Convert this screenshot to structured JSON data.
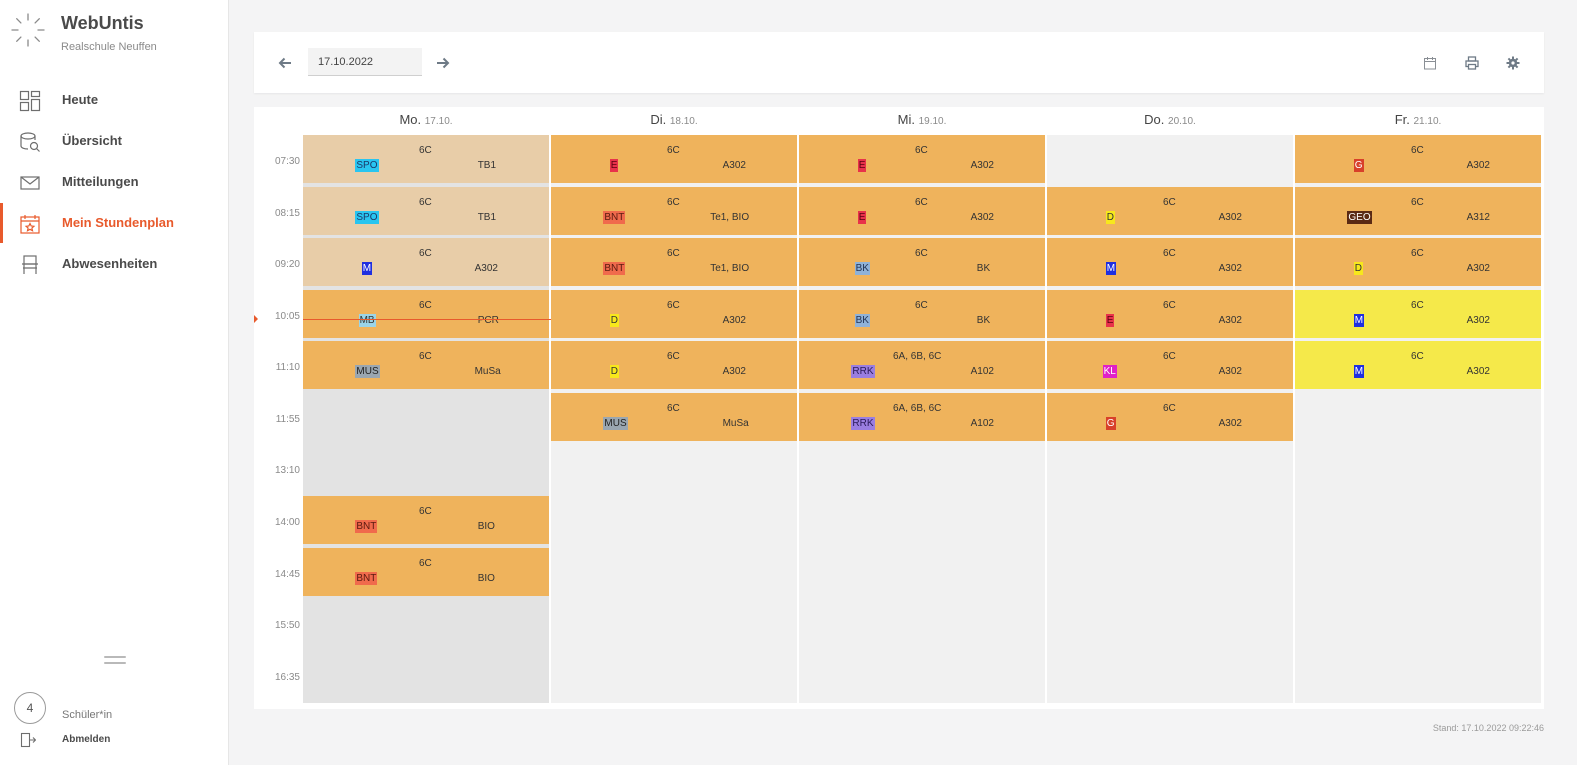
{
  "app": {
    "title": "WebUntis",
    "school": "Realschule Neuffen"
  },
  "nav": [
    {
      "label": "Heute",
      "icon": "dashboard-icon"
    },
    {
      "label": "Übersicht",
      "icon": "overview-icon"
    },
    {
      "label": "Mitteilungen",
      "icon": "mail-icon"
    },
    {
      "label": "Mein Stundenplan",
      "icon": "calendar-icon",
      "active": true
    },
    {
      "label": "Abwesenheiten",
      "icon": "chair-icon"
    }
  ],
  "user": {
    "avatar_text": "4",
    "role": "Schüler*in",
    "logout": "Abmelden"
  },
  "toolbar": {
    "date": "17.10.2022"
  },
  "colors": {
    "accent": "#e85a2c",
    "lesson": "#efb35c",
    "lesson_past": "#e8cda8",
    "highlight": "#f5e94a"
  },
  "days": [
    {
      "name": "Mo.",
      "date": "17.10."
    },
    {
      "name": "Di.",
      "date": "18.10."
    },
    {
      "name": "Mi.",
      "date": "19.10."
    },
    {
      "name": "Do.",
      "date": "20.10."
    },
    {
      "name": "Fr.",
      "date": "21.10."
    }
  ],
  "times": [
    "07:30",
    "08:15",
    "09:20",
    "10:05",
    "11:10",
    "11:55",
    "13:10",
    "14:00",
    "14:45",
    "15:50",
    "16:35"
  ],
  "lessons": [
    {
      "day": 0,
      "slot": 0,
      "class": "6C",
      "subject": "SPO",
      "subject_bg": "#29c5f0",
      "subject_fg": "#1b3a6b",
      "room": "TB1",
      "state": "past"
    },
    {
      "day": 0,
      "slot": 1,
      "class": "6C",
      "subject": "SPO",
      "subject_bg": "#29c5f0",
      "subject_fg": "#1b3a6b",
      "room": "TB1",
      "state": "past"
    },
    {
      "day": 0,
      "slot": 2,
      "class": "6C",
      "subject": "M",
      "subject_bg": "#1f2fe0",
      "subject_fg": "#ffffff",
      "room": "A302",
      "state": "past"
    },
    {
      "day": 0,
      "slot": 3,
      "class": "6C",
      "subject": "MB",
      "subject_bg": "#9ad4e8",
      "subject_fg": "#333333",
      "room": "PCR",
      "state": "normal"
    },
    {
      "day": 0,
      "slot": 4,
      "class": "6C",
      "subject": "MUS",
      "subject_bg": "#9aa6b0",
      "subject_fg": "#222222",
      "room": "MuSa",
      "state": "normal"
    },
    {
      "day": 0,
      "slot": 7,
      "class": "6C",
      "subject": "BNT",
      "subject_bg": "#f06a4c",
      "subject_fg": "#5a1a10",
      "room": "BIO",
      "state": "normal"
    },
    {
      "day": 0,
      "slot": 8,
      "class": "6C",
      "subject": "BNT",
      "subject_bg": "#f06a4c",
      "subject_fg": "#5a1a10",
      "room": "BIO",
      "state": "normal"
    },
    {
      "day": 1,
      "slot": 0,
      "class": "6C",
      "subject": "E",
      "subject_bg": "#e8324a",
      "subject_fg": "#5a0010",
      "room": "A302",
      "state": "normal"
    },
    {
      "day": 1,
      "slot": 1,
      "class": "6C",
      "subject": "BNT",
      "subject_bg": "#f06a4c",
      "subject_fg": "#5a1a10",
      "room": "Te1, BIO",
      "state": "normal"
    },
    {
      "day": 1,
      "slot": 2,
      "class": "6C",
      "subject": "BNT",
      "subject_bg": "#f06a4c",
      "subject_fg": "#5a1a10",
      "room": "Te1, BIO",
      "state": "normal"
    },
    {
      "day": 1,
      "slot": 3,
      "class": "6C",
      "subject": "D",
      "subject_bg": "#f7e81c",
      "subject_fg": "#333333",
      "room": "A302",
      "state": "normal"
    },
    {
      "day": 1,
      "slot": 4,
      "class": "6C",
      "subject": "D",
      "subject_bg": "#f7e81c",
      "subject_fg": "#333333",
      "room": "A302",
      "state": "normal"
    },
    {
      "day": 1,
      "slot": 5,
      "class": "6C",
      "subject": "MUS",
      "subject_bg": "#9aa6b0",
      "subject_fg": "#222222",
      "room": "MuSa",
      "state": "normal"
    },
    {
      "day": 2,
      "slot": 0,
      "class": "6C",
      "subject": "E",
      "subject_bg": "#e8324a",
      "subject_fg": "#5a0010",
      "room": "A302",
      "state": "normal"
    },
    {
      "day": 2,
      "slot": 1,
      "class": "6C",
      "subject": "E",
      "subject_bg": "#e8324a",
      "subject_fg": "#5a0010",
      "room": "A302",
      "state": "normal"
    },
    {
      "day": 2,
      "slot": 2,
      "class": "6C",
      "subject": "BK",
      "subject_bg": "#8fb2d8",
      "subject_fg": "#223355",
      "room": "BK",
      "state": "normal"
    },
    {
      "day": 2,
      "slot": 3,
      "class": "6C",
      "subject": "BK",
      "subject_bg": "#8fb2d8",
      "subject_fg": "#223355",
      "room": "BK",
      "state": "normal"
    },
    {
      "day": 2,
      "slot": 4,
      "class": "6A, 6B, 6C",
      "subject": "RRK",
      "subject_bg": "#9a7ee0",
      "subject_fg": "#2a1a5a",
      "room": "A102",
      "state": "normal"
    },
    {
      "day": 2,
      "slot": 5,
      "class": "6A, 6B, 6C",
      "subject": "RRK",
      "subject_bg": "#9a7ee0",
      "subject_fg": "#2a1a5a",
      "room": "A102",
      "state": "normal"
    },
    {
      "day": 3,
      "slot": 1,
      "class": "6C",
      "subject": "D",
      "subject_bg": "#f7e81c",
      "subject_fg": "#333333",
      "room": "A302",
      "state": "normal"
    },
    {
      "day": 3,
      "slot": 2,
      "class": "6C",
      "subject": "M",
      "subject_bg": "#1f2fe0",
      "subject_fg": "#ffffff",
      "room": "A302",
      "state": "normal"
    },
    {
      "day": 3,
      "slot": 3,
      "class": "6C",
      "subject": "E",
      "subject_bg": "#e8324a",
      "subject_fg": "#5a0010",
      "room": "A302",
      "state": "normal"
    },
    {
      "day": 3,
      "slot": 4,
      "class": "6C",
      "subject": "KL",
      "subject_bg": "#e020c8",
      "subject_fg": "#ffffff",
      "room": "A302",
      "state": "normal"
    },
    {
      "day": 3,
      "slot": 5,
      "class": "6C",
      "subject": "G",
      "subject_bg": "#d8402a",
      "subject_fg": "#ffffff",
      "room": "A302",
      "state": "normal"
    },
    {
      "day": 4,
      "slot": 0,
      "class": "6C",
      "subject": "G",
      "subject_bg": "#d8402a",
      "subject_fg": "#ffffff",
      "room": "A302",
      "state": "normal"
    },
    {
      "day": 4,
      "slot": 1,
      "class": "6C",
      "subject": "GEO",
      "subject_bg": "#5a2a14",
      "subject_fg": "#ffffff",
      "room": "A312",
      "state": "normal"
    },
    {
      "day": 4,
      "slot": 2,
      "class": "6C",
      "subject": "D",
      "subject_bg": "#f7e81c",
      "subject_fg": "#333333",
      "room": "A302",
      "state": "normal"
    },
    {
      "day": 4,
      "slot": 3,
      "class": "6C",
      "subject": "M",
      "subject_bg": "#1f2fe0",
      "subject_fg": "#ffffff",
      "room": "A302",
      "state": "highlight"
    },
    {
      "day": 4,
      "slot": 4,
      "class": "6C",
      "subject": "M",
      "subject_bg": "#1f2fe0",
      "subject_fg": "#ffffff",
      "room": "A302",
      "state": "highlight"
    }
  ],
  "footer": {
    "stand": "Stand: 17.10.2022 09:22:46"
  }
}
